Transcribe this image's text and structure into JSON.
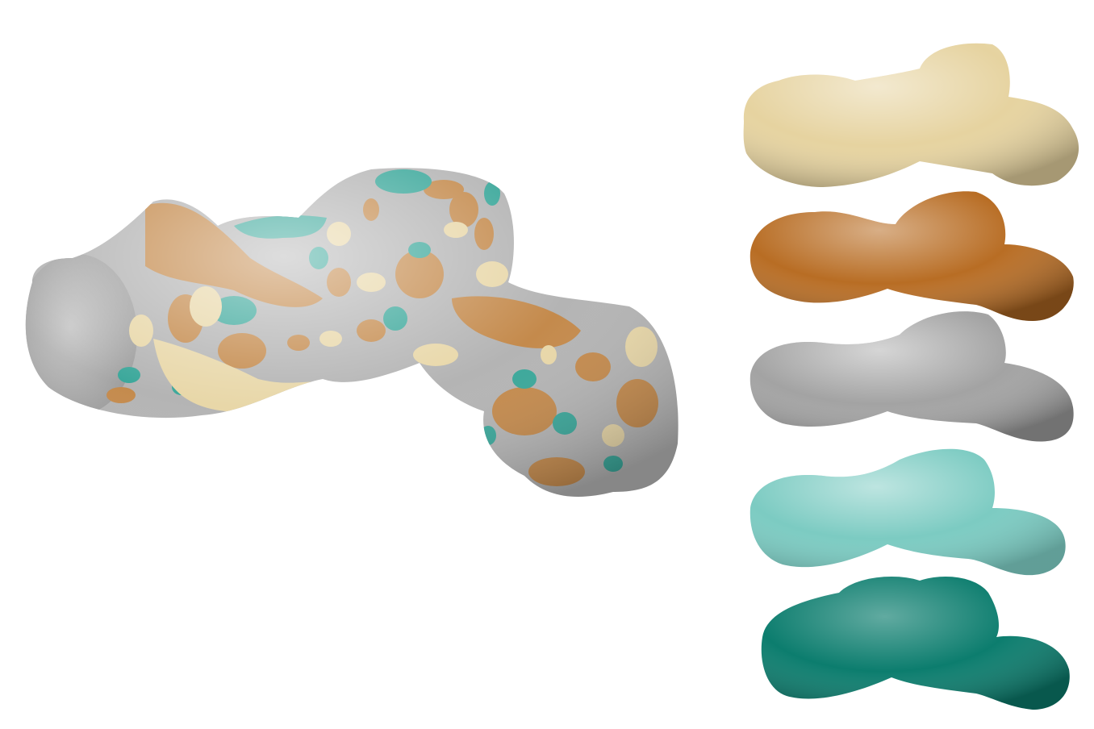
{
  "colors": {
    "background": "#ffffff",
    "sand": "#e6d3a0",
    "copper": "#b86d24",
    "silver": "#a3a3a3",
    "aqua": "#7ccbc2",
    "teal": "#0c7d6e",
    "composite_patch_copper": "#c48a4c",
    "composite_patch_teal": "#3aa79a",
    "composite_patch_sand": "#e8d7a8",
    "composite_base": "#b4b4b4"
  },
  "main_render": {
    "icon": "composite-molecular-surface"
  },
  "thumbnails": [
    {
      "icon": "surface-component-sand",
      "color": "#e6d3a0"
    },
    {
      "icon": "surface-component-copper",
      "color": "#b86d24"
    },
    {
      "icon": "surface-component-silver",
      "color": "#a3a3a3"
    },
    {
      "icon": "surface-component-aqua",
      "color": "#7ccbc2"
    },
    {
      "icon": "surface-component-teal",
      "color": "#0c7d6e"
    }
  ]
}
